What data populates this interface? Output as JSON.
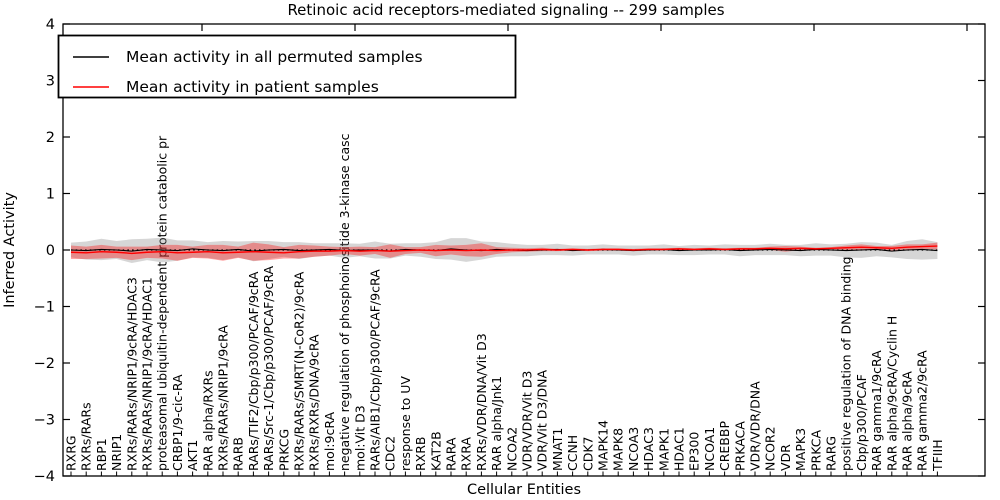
{
  "title": "Retinoic acid receptors-mediated signaling -- 299 samples",
  "legend": {
    "items": [
      {
        "label": "Mean activity in all permuted samples",
        "color": "#000000"
      },
      {
        "label": "Mean activity in patient samples",
        "color": "#ff0000"
      }
    ]
  },
  "colors": {
    "permuted_line": "#000000",
    "patient_line": "#ff0000",
    "permuted_band": "#808080",
    "patient_band": "#ff0000",
    "axis": "#000000",
    "background": "#ffffff"
  },
  "chart_data": {
    "type": "line",
    "title": "Retinoic acid receptors-mediated signaling -- 299 samples",
    "xlabel": "Cellular Entities",
    "ylabel": "Inferred Activity",
    "ylim": [
      -4,
      4
    ],
    "yticks": [
      -4,
      -3,
      -2,
      -1,
      0,
      1,
      2,
      3,
      4
    ],
    "grid": false,
    "legend_position": "upper left",
    "categories": [
      "RXRG",
      "RXRs/RARs",
      "RBP1",
      "NRIP1",
      "RXRs/RARs/NRIP1/9cRA/HDAC3",
      "RXRs/RARs/NRIP1/9cRA/HDAC1",
      "proteasomal ubiquitin-dependent protein catabolic pr",
      "CRBP1/9-cic-RA",
      "AKT1",
      "RAR alpha/RXRs",
      "RXRs/RARs/NRIP1/9cRA",
      "RARB",
      "RARs/TIF2/Cbp/p300/PCAF/9cRA",
      "RARs/Src-1/Cbp/p300/PCAF/9cRA",
      "PRKCG",
      "RXRs/RARs/SMRT(N-CoR2)/9cRA",
      "RXRs/RXRs/DNA/9cRA",
      "mol:9cRA",
      "negative regulation of phosphoinositide 3-kinase casc",
      "mol:Vit D3",
      "RARs/AIB1/Cbp/p300/PCAF/9cRA",
      "CDC2",
      "response to UV",
      "RXRB",
      "KAT2B",
      "RARA",
      "RXRA",
      "RXRs/VDR/DNA/Vit D3",
      "RAR alpha/Jnk1",
      "NCOA2",
      "VDR/VDR/Vit D3",
      "VDR/Vit D3/DNA",
      "MNAT1",
      "CCNH",
      "CDK7",
      "MAPK14",
      "MAPK8",
      "NCOA3",
      "HDAC3",
      "MAPK1",
      "HDAC1",
      "EP300",
      "NCOA1",
      "CREBBP",
      "PRKACA",
      "VDR/VDR/DNA",
      "NCOR2",
      "VDR",
      "MAPK3",
      "PRKCA",
      "RARG",
      "positive regulation of DNA binding",
      "Cbp/p300/PCAF",
      "RAR gamma1/9cRA",
      "RAR alpha/9cRA/Cyclin H",
      "RAR alpha/9cRA",
      "RAR gamma2/9cRA",
      "TFIIH"
    ],
    "series": [
      {
        "name": "Mean activity in all permuted samples",
        "color": "#000000",
        "band_color": "#808080",
        "band_opacity": 0.32,
        "values": [
          0,
          -0.01,
          0.01,
          0,
          -0.02,
          0.01,
          0,
          -0.01,
          0.02,
          0,
          -0.01,
          0.01,
          -0.02,
          0,
          0.01,
          -0.01,
          0,
          0.01,
          -0.01,
          0,
          0,
          -0.02,
          0.01,
          0,
          -0.01,
          0.02,
          0,
          -0.01,
          0.01,
          0,
          -0.01,
          0,
          0.01,
          -0.01,
          0,
          0.01,
          0,
          -0.01,
          0,
          0.01,
          -0.01,
          0,
          0,
          0.01,
          -0.01,
          0,
          0.01,
          0,
          -0.01,
          0.01,
          0,
          -0.01,
          0,
          0.01,
          -0.02,
          0,
          0.01,
          -0.01
        ],
        "band_halfwidth": [
          0.13,
          0.16,
          0.19,
          0.16,
          0.21,
          0.19,
          0.22,
          0.18,
          0.15,
          0.14,
          0.17,
          0.14,
          0.18,
          0.16,
          0.13,
          0.15,
          0.12,
          0.11,
          0.13,
          0.11,
          0.15,
          0.13,
          0.11,
          0.12,
          0.15,
          0.19,
          0.21,
          0.16,
          0.13,
          0.11,
          0.1,
          0.09,
          0.1,
          0.09,
          0.08,
          0.09,
          0.08,
          0.09,
          0.08,
          0.09,
          0.08,
          0.09,
          0.08,
          0.09,
          0.1,
          0.09,
          0.1,
          0.09,
          0.1,
          0.11,
          0.1,
          0.12,
          0.14,
          0.12,
          0.11,
          0.16,
          0.18,
          0.15
        ]
      },
      {
        "name": "Mean activity in patient samples",
        "color": "#ff0000",
        "band_color": "#ff0000",
        "band_opacity": 0.35,
        "values": [
          -0.04,
          -0.05,
          -0.03,
          -0.04,
          -0.06,
          -0.04,
          -0.03,
          -0.05,
          -0.04,
          -0.03,
          -0.05,
          -0.04,
          -0.03,
          -0.04,
          -0.05,
          -0.03,
          -0.02,
          -0.02,
          -0.01,
          -0.02,
          -0.01,
          -0.02,
          -0.01,
          0,
          -0.01,
          0,
          -0.01,
          0,
          -0.01,
          0,
          0,
          0.01,
          0,
          0.01,
          0,
          0.01,
          0.01,
          0,
          0.01,
          0.01,
          0.02,
          0.01,
          0.02,
          0.01,
          0.02,
          0.02,
          0.03,
          0.02,
          0.03,
          0.02,
          0.03,
          0.04,
          0.05,
          0.04,
          0.03,
          0.05,
          0.06,
          0.07
        ],
        "band_halfwidth": [
          0.12,
          0.11,
          0.12,
          0.1,
          0.12,
          0.1,
          0.12,
          0.14,
          0.1,
          0.12,
          0.14,
          0.1,
          0.16,
          0.14,
          0.1,
          0.12,
          0.1,
          0.08,
          0.06,
          0.08,
          0.06,
          0.12,
          0.06,
          0.05,
          0.1,
          0.08,
          0.1,
          0.12,
          0.06,
          0.04,
          0.03,
          0.03,
          0.02,
          0.02,
          0.02,
          0.02,
          0.02,
          0.02,
          0.02,
          0.02,
          0.02,
          0.02,
          0.02,
          0.02,
          0.02,
          0.02,
          0.03,
          0.05,
          0.03,
          0.02,
          0.02,
          0.04,
          0.05,
          0.03,
          0.04,
          0.05,
          0.04,
          0.06
        ]
      }
    ]
  }
}
